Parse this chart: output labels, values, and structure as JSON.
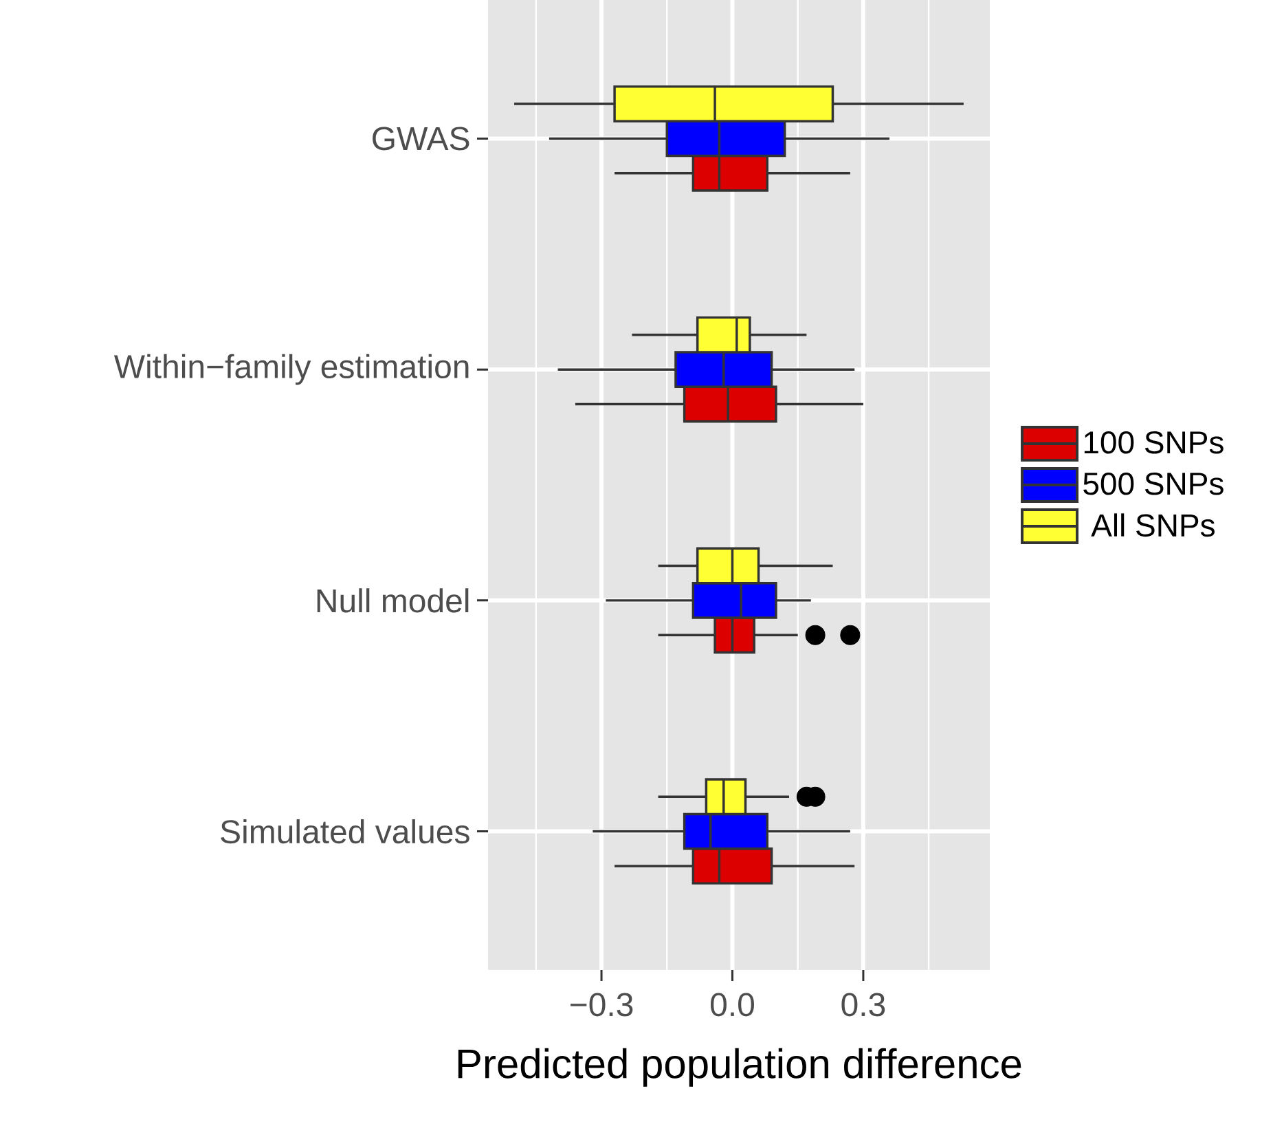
{
  "chart_data": {
    "type": "box",
    "xlabel": "Predicted population difference",
    "categories": [
      "GWAS",
      "Within−family estimation",
      "Null model",
      "Simulated values"
    ],
    "orientation": "horizontal",
    "xlim": [
      -0.56,
      0.59
    ],
    "xticks": [
      {
        "value": -0.45,
        "label": null
      },
      {
        "value": -0.3,
        "label": "−0.3"
      },
      {
        "value": -0.15,
        "label": null
      },
      {
        "value": 0.0,
        "label": "0.0"
      },
      {
        "value": 0.15,
        "label": null
      },
      {
        "value": 0.3,
        "label": "0.3"
      },
      {
        "value": 0.45,
        "label": null
      }
    ],
    "grid": true,
    "legend": "right",
    "series": [
      {
        "name": "100 SNPs",
        "color": "#dd0000",
        "boxes": [
          {
            "low": -0.27,
            "q1": -0.09,
            "median": -0.03,
            "q3": 0.08,
            "high": 0.27
          },
          {
            "low": -0.36,
            "q1": -0.11,
            "median": -0.01,
            "q3": 0.1,
            "high": 0.3
          },
          {
            "low": -0.17,
            "q1": -0.04,
            "median": 0.0,
            "q3": 0.05,
            "high": 0.15,
            "outliers": [
              0.19,
              0.27
            ]
          },
          {
            "low": -0.27,
            "q1": -0.09,
            "median": -0.03,
            "q3": 0.09,
            "high": 0.28
          }
        ]
      },
      {
        "name": "500 SNPs",
        "color": "#0000ff",
        "boxes": [
          {
            "low": -0.42,
            "q1": -0.15,
            "median": -0.03,
            "q3": 0.12,
            "high": 0.36
          },
          {
            "low": -0.4,
            "q1": -0.13,
            "median": -0.02,
            "q3": 0.09,
            "high": 0.28
          },
          {
            "low": -0.29,
            "q1": -0.09,
            "median": 0.02,
            "q3": 0.1,
            "high": 0.18
          },
          {
            "low": -0.32,
            "q1": -0.11,
            "median": -0.05,
            "q3": 0.08,
            "high": 0.27
          }
        ]
      },
      {
        "name": "All SNPs",
        "color": "#ffff33",
        "boxes": [
          {
            "low": -0.5,
            "q1": -0.27,
            "median": -0.04,
            "q3": 0.23,
            "high": 0.53
          },
          {
            "low": -0.23,
            "q1": -0.08,
            "median": 0.01,
            "q3": 0.04,
            "high": 0.17
          },
          {
            "low": -0.17,
            "q1": -0.08,
            "median": 0.0,
            "q3": 0.06,
            "high": 0.23
          },
          {
            "low": -0.17,
            "q1": -0.06,
            "median": -0.02,
            "q3": 0.03,
            "high": 0.13,
            "outliers": [
              0.17,
              0.19
            ]
          }
        ]
      }
    ]
  }
}
